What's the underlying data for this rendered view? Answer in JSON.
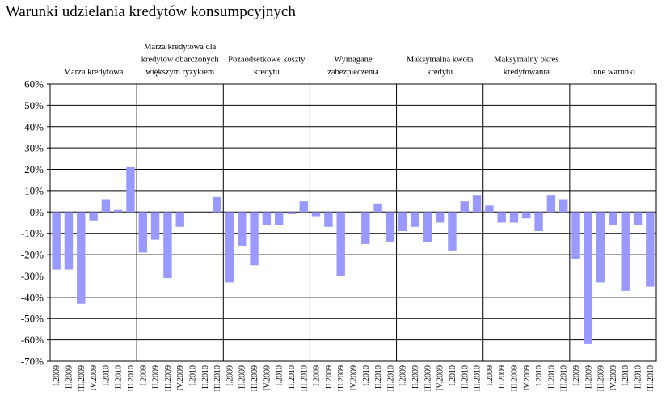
{
  "title": "Warunki udzielania kredytów konsumpcyjnych",
  "colors": {
    "bar": "#9999ff",
    "grid": "#000000",
    "background": "#ffffff"
  },
  "chart_data": {
    "type": "bar",
    "title": "Warunki udzielania kredytów konsumpcyjnych",
    "ylim": [
      -70,
      60
    ],
    "yticks": [
      60,
      50,
      40,
      30,
      20,
      10,
      0,
      -10,
      -20,
      -30,
      -40,
      -50,
      -60,
      -70
    ],
    "ytick_labels": [
      "60%",
      "50%",
      "40%",
      "30%",
      "20%",
      "10%",
      "0%",
      "-10%",
      "-20%",
      "-30%",
      "-40%",
      "-50%",
      "-60%",
      "-70%"
    ],
    "grid": true,
    "categories": [
      "I.2009",
      "II.2009",
      "III.2009",
      "IV.2009",
      "I.2010",
      "II.2010",
      "III.2010"
    ],
    "panels": [
      {
        "label": [
          "Marża kredytowa"
        ],
        "values": [
          -27,
          -27,
          -43,
          -4,
          6,
          1,
          21
        ]
      },
      {
        "label": [
          "Marża kredytowa dla",
          "kredytów obarczonych",
          "większym ryzykiem"
        ],
        "values": [
          -19,
          -13,
          -31,
          -7,
          0,
          0,
          7
        ]
      },
      {
        "label": [
          "Pozaodsetkowe koszty",
          "kredytu"
        ],
        "values": [
          -33,
          -16,
          -25,
          -6,
          -6,
          -1,
          5
        ]
      },
      {
        "label": [
          "Wymagane",
          "zabezpieczenia"
        ],
        "values": [
          -2,
          -7,
          -30,
          0,
          -15,
          4,
          -14
        ]
      },
      {
        "label": [
          "Maksymalna kwota",
          "kredytu"
        ],
        "values": [
          -9,
          -7,
          -14,
          -5,
          -18,
          5,
          8
        ]
      },
      {
        "label": [
          "Maksymalny okres",
          "kredytowania"
        ],
        "values": [
          3,
          -5,
          -5,
          -3,
          -9,
          8,
          6
        ]
      },
      {
        "label": [
          "Inne warunki"
        ],
        "values": [
          -22,
          -62,
          -33,
          -6,
          -37,
          -6,
          -35
        ]
      }
    ]
  }
}
